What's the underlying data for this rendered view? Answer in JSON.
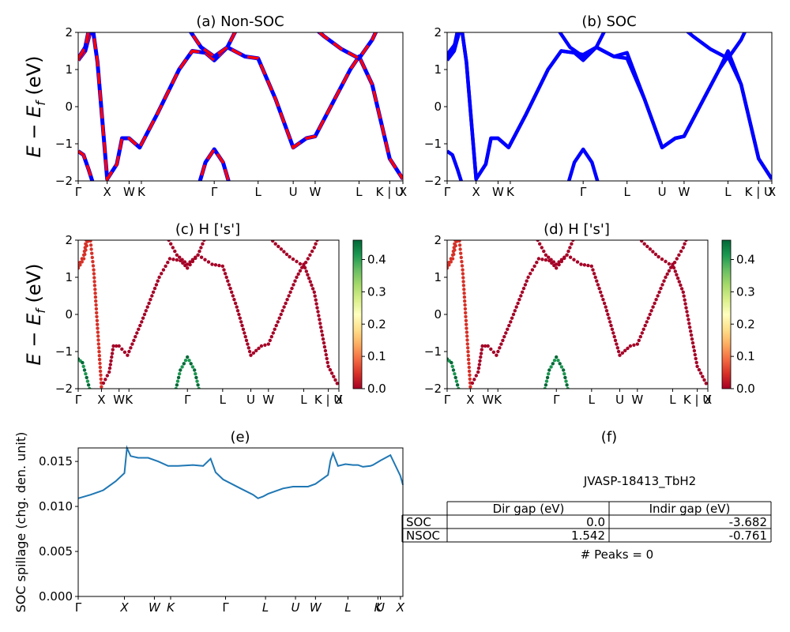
{
  "chart_data": [
    {
      "type": "line",
      "title": "(a) Non-SOC",
      "ylabel_main": "E − E",
      "ylabel_sub": "f",
      "ylabel_unit": " (eV)",
      "ylim": [
        -2,
        2
      ],
      "yticks": [
        "2",
        "1",
        "0",
        "−1",
        "−2"
      ],
      "xticks": [
        "Γ",
        "X",
        "W",
        "K",
        "Γ",
        "L",
        "U",
        "W",
        "L",
        "K | U",
        "X"
      ],
      "series": [
        {
          "color": "#0000ff",
          "style": "solid"
        },
        {
          "color": "#ff0000",
          "style": "dashed"
        }
      ],
      "bands": [
        {
          "x": [
            0,
            0.25,
            0.5,
            0.75,
            1.05,
            1.4,
            2.0,
            2.4,
            3.0,
            3.3,
            3.6,
            4.0,
            4.4,
            4.9,
            5.5,
            5.8,
            6.3,
            6.8,
            7.2,
            7.6,
            8.0,
            8.2,
            8.6,
            9.0,
            9.5,
            9.8,
            10.0
          ],
          "y": [
            1.3,
            1.4,
            1.6,
            1.85,
            2.05,
            1.2,
            -1.95,
            -1.7,
            -0.8,
            -0.9,
            -1.1,
            -0.3,
            0.6,
            1.4,
            1.5,
            1.25,
            1.6,
            1.3,
            0.2,
            -1.1,
            -0.85,
            -0.8,
            -0.3,
            0.4,
            1.3,
            1.1,
            0.6
          ]
        },
        {
          "x": [
            0,
            0.3,
            0.6,
            0.8
          ],
          "y": [
            -1.15,
            -1.3,
            -1.8,
            -2.05
          ]
        },
        {
          "x": [
            5.1,
            5.3,
            5.5,
            5.7,
            5.9
          ],
          "y": [
            -2.05,
            -1.4,
            -1.15,
            -1.4,
            -2.05
          ]
        },
        {
          "x": [
            8.1,
            8.6,
            9.0,
            9.5,
            9.8,
            10.0
          ],
          "y": [
            2.05,
            1.8,
            1.6,
            1.3,
            0.0,
            -1.9
          ]
        }
      ]
    },
    {
      "type": "line",
      "title": "(b) SOC",
      "ylim": [
        -2,
        2
      ],
      "yticks": [
        "2",
        "1",
        "0",
        "−1",
        "−2"
      ],
      "xticks": [
        "Γ",
        "X",
        "W",
        "K",
        "Γ",
        "L",
        "U",
        "W",
        "L",
        "K | U",
        "X"
      ],
      "series": [
        {
          "color": "#0000ff",
          "style": "solid"
        }
      ]
    },
    {
      "type": "scatter",
      "title": "(c)  H ['s']",
      "ylim": [
        -2,
        2
      ],
      "yticks": [
        "2",
        "1",
        "0",
        "−1",
        "−2"
      ],
      "xticks": [
        "Γ",
        "X",
        "W",
        "K",
        "Γ",
        "L",
        "U",
        "W",
        "L",
        "K | U",
        "X"
      ],
      "colorbar": {
        "ticks": [
          "0.4",
          "0.3",
          "0.2",
          "0.1",
          "0.0"
        ],
        "min": 0.0,
        "max": 0.46
      }
    },
    {
      "type": "scatter",
      "title": "(d) H ['s']",
      "ylim": [
        -2,
        2
      ],
      "yticks": [
        "2",
        "1",
        "0",
        "−1",
        "−2"
      ],
      "xticks": [
        "Γ",
        "X",
        "W",
        "K",
        "Γ",
        "L",
        "U",
        "W",
        "L",
        "K | U",
        "X"
      ],
      "colorbar": {
        "ticks": [
          "0.4",
          "0.3",
          "0.2",
          "0.1",
          "0.0"
        ],
        "min": 0.0,
        "max": 0.46
      }
    },
    {
      "type": "line",
      "title": "(e)",
      "ylabel": "SOC spillage (chg. den. unit)",
      "ylim": [
        0.0,
        0.0165
      ],
      "yticks": [
        "0.015",
        "0.010",
        "0.005",
        "0.000"
      ],
      "xticks": [
        "Γ",
        "X",
        "W",
        "K",
        "Γ",
        "L",
        "U",
        "W",
        "L",
        "K",
        "U",
        "X"
      ],
      "series": [
        {
          "color": "#1f77b4",
          "style": "solid"
        }
      ],
      "x": [
        0,
        0.5,
        1.0,
        1.5,
        1.85,
        1.95,
        2.1,
        2.4,
        2.8,
        3.2,
        3.6,
        4.0,
        4.6,
        5.0,
        5.3,
        5.5,
        5.8,
        6.5,
        7.0,
        7.2,
        7.4,
        7.6,
        8.2,
        8.6,
        9.2,
        9.5,
        10.0,
        10.1,
        10.2,
        10.4,
        10.7,
        11.0,
        11.2,
        11.4,
        11.7,
        11.8,
        12.1,
        12.5,
        12.9,
        13.0
      ],
      "y": [
        0.0109,
        0.0113,
        0.0118,
        0.0128,
        0.0137,
        0.0165,
        0.0156,
        0.0154,
        0.0154,
        0.015,
        0.0145,
        0.0145,
        0.0146,
        0.0145,
        0.0153,
        0.0138,
        0.013,
        0.012,
        0.0113,
        0.0109,
        0.0111,
        0.0114,
        0.012,
        0.0122,
        0.0122,
        0.0125,
        0.0135,
        0.0151,
        0.0159,
        0.0145,
        0.0147,
        0.0146,
        0.0146,
        0.0144,
        0.0145,
        0.0146,
        0.0151,
        0.0157,
        0.0134,
        0.0124
      ]
    },
    {
      "type": "table",
      "title": "(f)",
      "name": "JVASP-18413_TbH2",
      "columns": [
        "Dir gap (eV)",
        "Indir gap (eV)"
      ],
      "rows": [
        {
          "label": "SOC",
          "dir": "0.0",
          "indir": "-3.682"
        },
        {
          "label": "NSOC",
          "dir": "1.542",
          "indir": "-0.761"
        }
      ],
      "peaks": "# Peaks = 0"
    }
  ]
}
